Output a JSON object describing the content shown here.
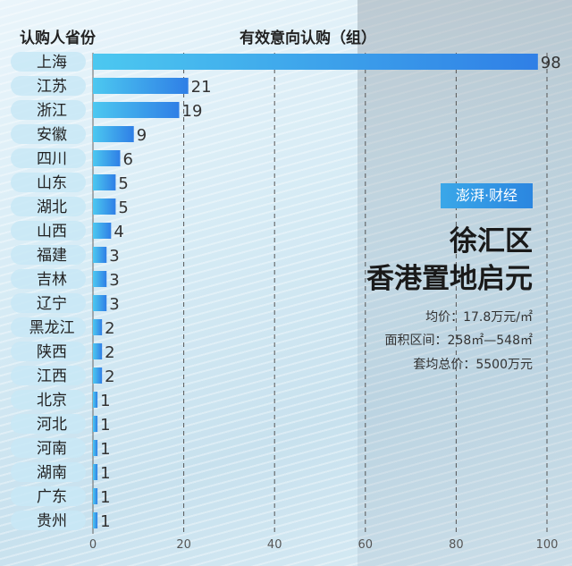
{
  "chart_data": {
    "type": "bar",
    "orientation": "horizontal",
    "ylabel": "认购人省份",
    "xlabel": "有效意向认购（组）",
    "categories": [
      "上海",
      "江苏",
      "浙江",
      "安徽",
      "四川",
      "山东",
      "湖北",
      "山西",
      "福建",
      "吉林",
      "辽宁",
      "黑龙江",
      "陕西",
      "江西",
      "北京",
      "河北",
      "河南",
      "湖南",
      "广东",
      "贵州"
    ],
    "values": [
      98,
      21,
      19,
      9,
      6,
      5,
      5,
      4,
      3,
      3,
      3,
      2,
      2,
      2,
      1,
      1,
      1,
      1,
      1,
      1
    ],
    "xlim": [
      0,
      100
    ],
    "xticks": [
      0,
      20,
      40,
      60,
      80,
      100
    ],
    "grid": "vertical dashed",
    "colors": {
      "bar_start": "#4cc8f0",
      "bar_end": "#2f7fe6"
    }
  },
  "logo": "澎湃·财经",
  "title_line1": "徐汇区",
  "title_line2": "香港置地启元",
  "info": [
    "均价：17.8万元/㎡",
    "面积区间：258㎡—548㎡",
    "套均总价：5500万元"
  ]
}
